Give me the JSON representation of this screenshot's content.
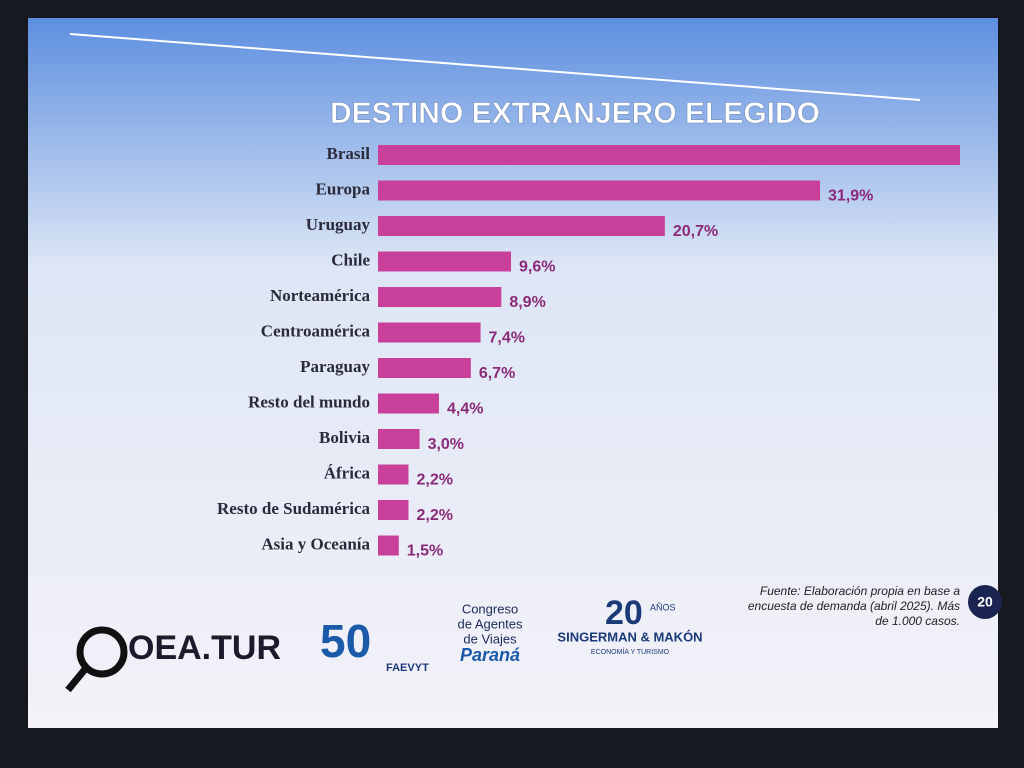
{
  "chart_data": {
    "type": "bar",
    "orientation": "horizontal",
    "title": "DESTINO EXTRANJERO ELEGIDO",
    "categories": [
      "Brasil",
      "Europa",
      "Uruguay",
      "Chile",
      "Norteamérica",
      "Centroamérica",
      "Paraguay",
      "Resto del mundo",
      "Bolivia",
      "África",
      "Resto de Sudamérica",
      "Asia y Oceanía"
    ],
    "values": [
      42,
      31.9,
      20.7,
      9.6,
      8.9,
      7.4,
      6.7,
      4.4,
      3.0,
      2.2,
      2.2,
      1.5
    ],
    "value_labels": [
      null,
      "31,9%",
      "20,7%",
      "9,6%",
      "8,9%",
      "7,4%",
      "6,7%",
      "4,4%",
      "3,0%",
      "2,2%",
      "2,2%",
      "1,5%"
    ],
    "color": "#c8409a"
  },
  "footer": {
    "source": [
      "Fuente: Elaboración propia en base a",
      "encuesta de demanda (abril 2025). Más",
      "de 1.000 casos."
    ],
    "page": "20",
    "logos": {
      "oea": "OEA.TUR",
      "faevyt_number": "50",
      "faevyt": "FAEVYT",
      "congreso": [
        "Congreso",
        "de Agentes",
        "de Viajes"
      ],
      "city": "Paraná",
      "sm_number": "20",
      "sm_years": "AÑOS",
      "sm_name": "SINGERMAN & MAKÓN",
      "sm_tagline": "ECONOMÍA Y TURISMO"
    }
  }
}
